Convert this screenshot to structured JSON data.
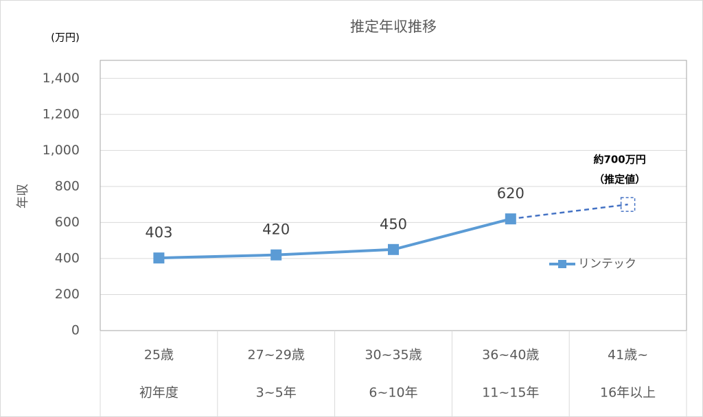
{
  "chart_data": {
    "type": "line",
    "title": "推定年収推移",
    "y_unit": "(万円)",
    "ylabel": "年収",
    "categories": [
      "25歳",
      "27~29歳",
      "30~35歳",
      "36~40歳",
      "41歳~"
    ],
    "category_sublabels": [
      "初年度",
      "3~5年",
      "6~10年",
      "11~15年",
      "16年以上"
    ],
    "series": [
      {
        "name": "リンテック",
        "color": "#5b9bd5",
        "values": [
          403,
          420,
          450,
          620,
          null
        ]
      }
    ],
    "estimate": {
      "color": "#4472c4",
      "dashed": true,
      "values": [
        null,
        null,
        null,
        620,
        700
      ]
    },
    "annotation": [
      "約700万円",
      "（推定値）"
    ],
    "ylim": [
      0,
      1500
    ],
    "yticks": [
      0,
      200,
      400,
      600,
      800,
      {
        "value": 1000,
        "label": "1,000"
      },
      {
        "value": 1200,
        "label": "1,200"
      },
      {
        "value": 1400,
        "label": "1,400"
      }
    ],
    "grid": true,
    "legend": "right"
  }
}
